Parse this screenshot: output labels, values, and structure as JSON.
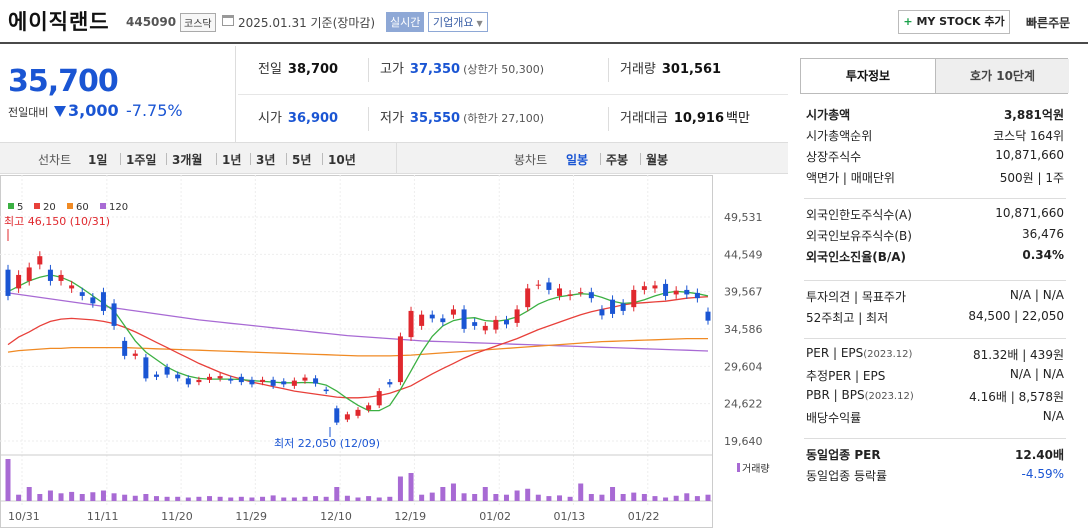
{
  "header": {
    "stock_name": "에이직랜드",
    "stock_code": "445090",
    "market": "코스닥",
    "date_text": "2025.01.31 기준(장마감)",
    "live_label": "실시간",
    "corp_label": "기업개요",
    "mystock_plus": "+",
    "mystock_label": "MY STOCK 추가",
    "quick_order": "빠른주문"
  },
  "price": {
    "current": "35,700",
    "change_label": "전일대비",
    "change_value": "3,000",
    "change_pct": "-7.75%",
    "colors": {
      "down": "#1a55d3",
      "up": "#e0282e"
    }
  },
  "quote": {
    "prev_close": {
      "label": "전일",
      "value": "38,700"
    },
    "high": {
      "label": "고가",
      "value": "37,350",
      "sub": "(상한가 50,300)"
    },
    "volume": {
      "label": "거래량",
      "value": "301,561"
    },
    "open": {
      "label": "시가",
      "value": "36,900"
    },
    "low": {
      "label": "저가",
      "value": "35,550",
      "sub": "(하한가 27,100)"
    },
    "amount": {
      "label": "거래대금",
      "value": "10,916",
      "unit": "백만"
    }
  },
  "period": {
    "line_label": "선차트",
    "line_items": [
      "1일",
      "1주일",
      "3개월",
      "1년",
      "3년",
      "5년",
      "10년"
    ],
    "candle_label": "봉차트",
    "candle_items": [
      "일봉",
      "주봉",
      "월봉"
    ],
    "active_candle": "일봉"
  },
  "chart_data": {
    "type": "candlestick",
    "legend": [
      {
        "name": "5",
        "color": "#3cb043"
      },
      {
        "name": "20",
        "color": "#e8403a"
      },
      {
        "name": "60",
        "color": "#f08a24"
      },
      {
        "name": "120",
        "color": "#a86ad4"
      }
    ],
    "y_ticks": [
      "49,531",
      "44,549",
      "39,567",
      "34,586",
      "29,604",
      "24,622",
      "19,640"
    ],
    "ylim": [
      19640,
      49531
    ],
    "x_ticks": [
      "10/31",
      "11/11",
      "11/20",
      "11/29",
      "12/10",
      "12/19",
      "01/02",
      "01/13",
      "01/22"
    ],
    "high_annotation": "최고 46,150 (10/31)",
    "low_annotation": "최저 22,050 (12/09)",
    "volume_label": "거래량",
    "candles": [
      {
        "o": 42500,
        "c": 39000
      },
      {
        "o": 40000,
        "c": 41800
      },
      {
        "o": 41000,
        "c": 42800
      },
      {
        "o": 43200,
        "c": 44300
      },
      {
        "o": 42500,
        "c": 41000
      },
      {
        "o": 41000,
        "c": 41800
      },
      {
        "o": 40000,
        "c": 40400
      },
      {
        "o": 39500,
        "c": 39000
      },
      {
        "o": 38800,
        "c": 38000
      },
      {
        "o": 39500,
        "c": 37000
      },
      {
        "o": 38000,
        "c": 35000
      },
      {
        "o": 33000,
        "c": 31000
      },
      {
        "o": 31000,
        "c": 31300
      },
      {
        "o": 30800,
        "c": 28000
      },
      {
        "o": 28500,
        "c": 28200
      },
      {
        "o": 29500,
        "c": 28500
      },
      {
        "o": 28500,
        "c": 28000
      },
      {
        "o": 28000,
        "c": 27200
      },
      {
        "o": 27500,
        "c": 27800
      },
      {
        "o": 27800,
        "c": 28200
      },
      {
        "o": 28000,
        "c": 28300
      },
      {
        "o": 27900,
        "c": 27700
      },
      {
        "o": 28200,
        "c": 27500
      },
      {
        "o": 27800,
        "c": 27200
      },
      {
        "o": 27500,
        "c": 27800
      },
      {
        "o": 27800,
        "c": 27000
      },
      {
        "o": 27600,
        "c": 27200
      },
      {
        "o": 27000,
        "c": 27700
      },
      {
        "o": 27700,
        "c": 28100
      },
      {
        "o": 28000,
        "c": 27300
      },
      {
        "o": 26500,
        "c": 26300
      },
      {
        "o": 24000,
        "c": 22100
      },
      {
        "o": 22500,
        "c": 23200
      },
      {
        "o": 23000,
        "c": 23800
      },
      {
        "o": 23800,
        "c": 24400
      },
      {
        "o": 24400,
        "c": 26300
      },
      {
        "o": 27500,
        "c": 27200
      },
      {
        "o": 27500,
        "c": 33600
      },
      {
        "o": 33500,
        "c": 37000
      },
      {
        "o": 35000,
        "c": 36500
      },
      {
        "o": 36500,
        "c": 36000
      },
      {
        "o": 36000,
        "c": 35500
      },
      {
        "o": 36500,
        "c": 37200
      },
      {
        "o": 37200,
        "c": 34600
      },
      {
        "o": 35500,
        "c": 35000
      },
      {
        "o": 34400,
        "c": 35000
      },
      {
        "o": 34500,
        "c": 35800
      },
      {
        "o": 35800,
        "c": 35200
      },
      {
        "o": 35400,
        "c": 37200
      },
      {
        "o": 37500,
        "c": 40000
      },
      {
        "o": 40500,
        "c": 40500
      },
      {
        "o": 40800,
        "c": 39800
      },
      {
        "o": 39000,
        "c": 40000
      },
      {
        "o": 39000,
        "c": 39200
      },
      {
        "o": 39500,
        "c": 39500
      },
      {
        "o": 39500,
        "c": 38700
      },
      {
        "o": 37200,
        "c": 36400
      },
      {
        "o": 38500,
        "c": 36600
      },
      {
        "o": 38000,
        "c": 37000
      },
      {
        "o": 37500,
        "c": 39800
      },
      {
        "o": 39800,
        "c": 40300
      },
      {
        "o": 40000,
        "c": 40400
      },
      {
        "o": 40600,
        "c": 39000
      },
      {
        "o": 39200,
        "c": 39700
      },
      {
        "o": 39800,
        "c": 39200
      },
      {
        "o": 39400,
        "c": 38700
      },
      {
        "o": 36900,
        "c": 35700
      }
    ],
    "volumes": [
      120,
      18,
      40,
      20,
      30,
      22,
      26,
      20,
      25,
      30,
      22,
      18,
      15,
      20,
      14,
      12,
      12,
      10,
      12,
      14,
      12,
      10,
      12,
      10,
      12,
      16,
      10,
      10,
      12,
      14,
      12,
      40,
      15,
      10,
      14,
      10,
      12,
      70,
      80,
      18,
      24,
      40,
      50,
      22,
      20,
      40,
      20,
      18,
      30,
      35,
      18,
      14,
      16,
      12,
      50,
      20,
      18,
      40,
      20,
      24,
      20,
      14,
      10,
      15,
      22,
      14,
      18
    ],
    "ma5": [
      39567,
      40300,
      41000,
      41500,
      41800,
      41500,
      40900,
      40000,
      39000,
      38000,
      37000,
      35000,
      33000,
      31500,
      30500,
      29500,
      28800,
      28300,
      28000,
      27900,
      27900,
      27900,
      27850,
      27700,
      27600,
      27500,
      27400,
      27400,
      27450,
      27400,
      27100,
      26300,
      25300,
      24400,
      23700,
      23700,
      24400,
      26500,
      29000,
      31500,
      33600,
      35000,
      35700,
      36000,
      36100,
      35700,
      35600,
      35800,
      36200,
      37000,
      37900,
      38500,
      38900,
      39100,
      39300,
      39200,
      38800,
      38300,
      38000,
      38100,
      38500,
      39000,
      39400,
      39600,
      39500,
      39300,
      39000
    ],
    "ma20": [
      32500,
      33500,
      34200,
      35000,
      35600,
      35900,
      36000,
      35900,
      35800,
      35600,
      35300,
      34800,
      34200,
      33500,
      32800,
      32100,
      31400,
      30700,
      30000,
      29400,
      28800,
      28300,
      27900,
      27500,
      27200,
      26900,
      26600,
      26300,
      26100,
      25900,
      25700,
      25500,
      25400,
      25400,
      25500,
      25700,
      26000,
      26500,
      27000,
      27800,
      28600,
      29300,
      30000,
      30700,
      31300,
      31800,
      32300,
      32800,
      33300,
      33900,
      34500,
      35000,
      35500,
      36000,
      36500,
      36900,
      37200,
      37500,
      37800,
      38000,
      38100,
      38200,
      38300,
      38500,
      38700,
      38800,
      38900
    ],
    "ma60": [
      31500,
      31700,
      31800,
      31900,
      32000,
      32000,
      32100,
      32100,
      32100,
      32100,
      32100,
      32100,
      32050,
      32000,
      31950,
      31900,
      31850,
      31800,
      31750,
      31700,
      31650,
      31600,
      31550,
      31500,
      31450,
      31400,
      31350,
      31300,
      31250,
      31200,
      31150,
      31100,
      31050,
      31000,
      31000,
      31000,
      31000,
      31050,
      31100,
      31200,
      31300,
      31400,
      31500,
      31600,
      31700,
      31800,
      31900,
      32000,
      32100,
      32200,
      32300,
      32400,
      32500,
      32600,
      32700,
      32800,
      32900,
      32950,
      33000,
      33050,
      33100,
      33150,
      33200,
      33250,
      33300,
      33300,
      33300
    ],
    "ma120": [
      39400,
      39200,
      39000,
      38800,
      38600,
      38400,
      38200,
      38000,
      37800,
      37600,
      37400,
      37200,
      37000,
      36800,
      36600,
      36400,
      36200,
      36000,
      35800,
      35650,
      35500,
      35350,
      35200,
      35050,
      34900,
      34750,
      34600,
      34450,
      34300,
      34150,
      34000,
      33850,
      33700,
      33600,
      33500,
      33400,
      33300,
      33200,
      33100,
      33000,
      32950,
      32900,
      32850,
      32800,
      32750,
      32700,
      32650,
      32600,
      32550,
      32500,
      32450,
      32400,
      32350,
      32300,
      32250,
      32200,
      32150,
      32100,
      32050,
      32000,
      31950,
      31900,
      31850,
      31800,
      31750,
      31700,
      31650
    ]
  },
  "side": {
    "tab1": "투자정보",
    "tab2": "호가 10단계",
    "sec1": [
      {
        "k": "시가총액",
        "v": "3,881억원",
        "bold": true
      },
      {
        "k": "시가총액순위",
        "v": "코스닥 164위"
      },
      {
        "k": "상장주식수",
        "v": "10,871,660"
      },
      {
        "k": "액면가 | 매매단위",
        "v": "500원 | 1주"
      }
    ],
    "sec2": [
      {
        "k": "외국인한도주식수(A)",
        "v": "10,871,660"
      },
      {
        "k": "외국인보유주식수(B)",
        "v": "36,476"
      },
      {
        "k": "외국인소진율(B/A)",
        "v": "0.34%",
        "bold": true
      }
    ],
    "sec3": [
      {
        "k": "투자의견 | 목표주가",
        "v": "N/A | N/A"
      },
      {
        "k": "52주최고 | 최저",
        "v": "84,500 | 22,050"
      }
    ],
    "sec4": [
      {
        "k": "PER | EPS",
        "ksub": "(2023.12)",
        "v": "81.32배 | 439원"
      },
      {
        "k": "추정PER | EPS",
        "v": "N/A | N/A"
      },
      {
        "k": "PBR | BPS",
        "ksub": "(2023.12)",
        "v": "4.16배 | 8,578원"
      },
      {
        "k": "배당수익률",
        "v": "N/A"
      }
    ],
    "sec5": [
      {
        "k": "동일업종 PER",
        "v": "12.40배",
        "bold": true
      },
      {
        "k": "동일업종 등락률",
        "v": "-4.59%",
        "blue": true
      }
    ]
  }
}
